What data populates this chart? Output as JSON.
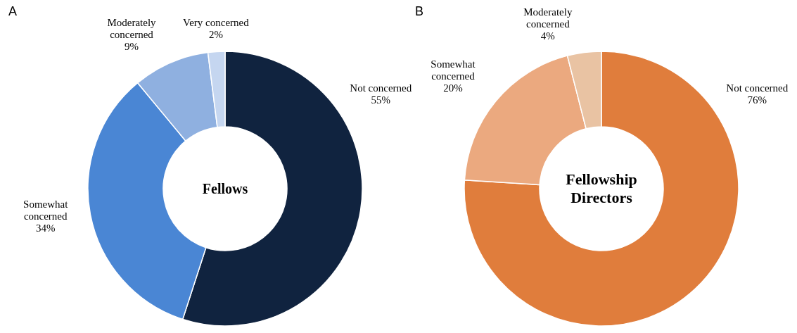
{
  "chart_data": [
    {
      "type": "donut",
      "title": "Fellows",
      "annotations": [
        "A"
      ],
      "categories": [
        "Not concerned",
        "Somewhat concerned",
        "Moderately concerned",
        "Very concerned"
      ],
      "values": [
        55,
        34,
        9,
        2
      ],
      "colors": [
        "#10233f",
        "#4a86d4",
        "#8fb0e0",
        "#c5d6f0"
      ],
      "value_labels": [
        "55%",
        "34%",
        "9%",
        "2%"
      ]
    },
    {
      "type": "donut",
      "title": "Fellowship Directors",
      "annotations": [
        "B"
      ],
      "categories": [
        "Not concerned",
        "Somewhat concerned",
        "Moderately concerned"
      ],
      "values": [
        76,
        20,
        4
      ],
      "colors": [
        "#e07d3c",
        "#eba97f",
        "#e9c3a3"
      ],
      "value_labels": [
        "76%",
        "20%",
        "4%"
      ]
    }
  ]
}
